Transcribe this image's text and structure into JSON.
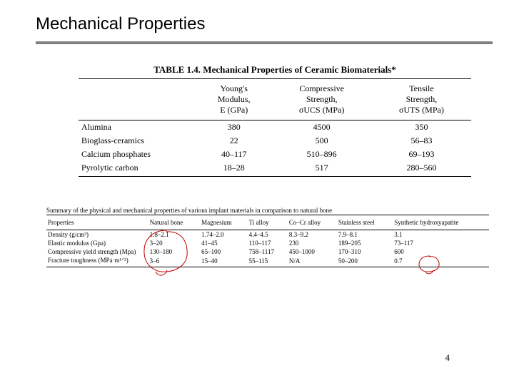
{
  "title": "Mechanical Properties",
  "page_number": "4",
  "table1": {
    "caption": "TABLE 1.4.  Mechanical Properties of Ceramic Biomaterials*",
    "headers": {
      "c0": "",
      "c1": "Young's\nModulus,\nE (GPa)",
      "c2": "Compressive\nStrength,\nσUCS (MPa)",
      "c3": "Tensile\nStrength,\nσUTS (MPa)"
    },
    "rows": [
      {
        "c0": "Alumina",
        "c1": "380",
        "c2": "4500",
        "c3": "350"
      },
      {
        "c0": "Bioglass-ceramics",
        "c1": "22",
        "c2": "500",
        "c3": "56–83"
      },
      {
        "c0": "Calcium phosphates",
        "c1": "40–117",
        "c2": "510–896",
        "c3": "69–193"
      },
      {
        "c0": "Pyrolytic carbon",
        "c1": "18–28",
        "c2": "517",
        "c3": "280–560"
      }
    ]
  },
  "table2": {
    "caption": "Summary of the physical and mechanical properties of various implant materials in comparison to natural bone",
    "headers": {
      "p0": "Properties",
      "p1": "Natural bone",
      "p2": "Magnesium",
      "p3": "Ti alloy",
      "p4": "Co–Cr alloy",
      "p5": "Stainless steel",
      "p6": "Synthetic hydroxyapatite"
    },
    "rows": [
      {
        "p0": "Density (g/cm³)",
        "p1": "1.8–2.1",
        "p2": "1.74–2.0",
        "p3": "4.4–4.5",
        "p4": "8.3–9.2",
        "p5": "7.9–8.1",
        "p6": "3.1"
      },
      {
        "p0": "Elastic modulus (Gpa)",
        "p1": "3–20",
        "p2": "41–45",
        "p3": "110–117",
        "p4": "230",
        "p5": "189–205",
        "p6": "73–117"
      },
      {
        "p0": "Compressive yield strength (Mpa)",
        "p1": "130–180",
        "p2": "65–100",
        "p3": "758–1117",
        "p4": "450–1000",
        "p5": "170–310",
        "p6": "600"
      },
      {
        "p0": "Fracture toughness (MPa·m¹ᐟ²)",
        "p1": "3–6",
        "p2": "15–40",
        "p3": "55–115",
        "p4": "N/A",
        "p5": "50–200",
        "p6": "0.7"
      }
    ]
  },
  "annotations": {
    "circle1": {
      "stroke": "#c00000",
      "fill": "none",
      "stroke_width": 1
    },
    "circle2": {
      "stroke": "#c00000",
      "fill": "none",
      "stroke_width": 1
    }
  }
}
